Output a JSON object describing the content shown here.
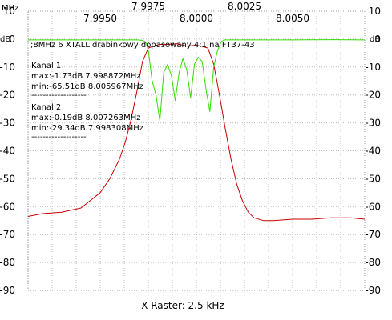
{
  "chart_data": {
    "type": "line",
    "title": ";8MHz 6 XTALL drabinkowy dopasowany 4:1 na FT37-43",
    "x_unit": "MHz",
    "y_unit_left": "dB",
    "y_unit_right": "dB",
    "xlabel": "X-Raster: 2.5 kHz",
    "xlim": [
      7.99125,
      8.00875
    ],
    "ylim": [
      -90,
      10
    ],
    "grid": true,
    "x_ticks": [
      {
        "value": 7.995,
        "label": "7.9950"
      },
      {
        "value": 7.9975,
        "label": "7.9975"
      },
      {
        "value": 8.0,
        "label": "8.0000"
      },
      {
        "value": 8.0025,
        "label": "8.0025"
      },
      {
        "value": 8.005,
        "label": "8.0050"
      }
    ],
    "y_ticks": [
      {
        "value": 10,
        "label": "10"
      },
      {
        "value": 0,
        "label": "0"
      },
      {
        "value": -10,
        "label": "-10"
      },
      {
        "value": -20,
        "label": "-20"
      },
      {
        "value": -30,
        "label": "-30"
      },
      {
        "value": -40,
        "label": "-40"
      },
      {
        "value": -50,
        "label": "-50"
      },
      {
        "value": -60,
        "label": "-60"
      },
      {
        "value": -70,
        "label": "-70"
      },
      {
        "value": -80,
        "label": "-80"
      },
      {
        "value": -90,
        "label": "-90"
      }
    ],
    "annotations": [
      "Kanal 1",
      "max:-1.73dB 7.998872MHz",
      "min:-65.51dB 8.005967MHz",
      "-------------------",
      "Kanal 2",
      "max:-0.19dB 8.007263MHz",
      "min:-29.34dB 7.998308MHz",
      "-------------------"
    ],
    "series": [
      {
        "color": "#cc0000",
        "x": [
          7.99125,
          7.992,
          7.993,
          7.994,
          7.995,
          7.9955,
          7.996,
          7.9963,
          7.9966,
          7.9969,
          7.9972,
          7.9975,
          7.9978,
          7.9981,
          7.9985,
          7.999,
          7.9995,
          8.0,
          8.0003,
          8.0006,
          8.0009,
          8.0012,
          8.0015,
          8.0018,
          8.0021,
          8.0024,
          8.0027,
          8.003,
          8.0035,
          8.004,
          8.005,
          8.006,
          8.007,
          8.008,
          8.00875
        ],
        "y": [
          -63.5,
          -62.5,
          -62.0,
          -60.5,
          -55.0,
          -50.0,
          -43.0,
          -37.0,
          -29.0,
          -19.0,
          -8.0,
          -3.2,
          -2.4,
          -1.9,
          -1.9,
          -1.7,
          -2.5,
          -2.2,
          -2.6,
          -3.2,
          -9.0,
          -20.0,
          -32.0,
          -43.0,
          -52.0,
          -58.0,
          -62.0,
          -64.0,
          -65.0,
          -65.0,
          -64.5,
          -64.5,
          -64.0,
          -64.0,
          -64.5
        ]
      },
      {
        "color": "#33dd00",
        "x": [
          7.99125,
          7.995,
          7.997,
          7.9972,
          7.9974,
          7.9975,
          7.9977,
          7.9979,
          7.9981,
          7.9983,
          7.9985,
          7.9987,
          7.9989,
          7.9991,
          7.9993,
          7.9995,
          7.9997,
          7.9999,
          8.0001,
          8.0003,
          8.0005,
          8.0007,
          8.0009,
          8.0011,
          8.0013,
          8.0015,
          8.002,
          8.005,
          8.0072,
          8.00875
        ],
        "y": [
          -0.3,
          -0.3,
          -0.3,
          -0.5,
          -1.5,
          -4.0,
          -15.0,
          -20.0,
          -29.3,
          -12.0,
          -9.0,
          -13.0,
          -22.0,
          -12.0,
          -7.0,
          -11.0,
          -21.0,
          -9.0,
          -6.5,
          -8.0,
          -18.0,
          -26.0,
          -10.0,
          -4.0,
          -0.8,
          -0.3,
          -0.3,
          -0.3,
          -0.2,
          -0.3
        ]
      }
    ]
  }
}
